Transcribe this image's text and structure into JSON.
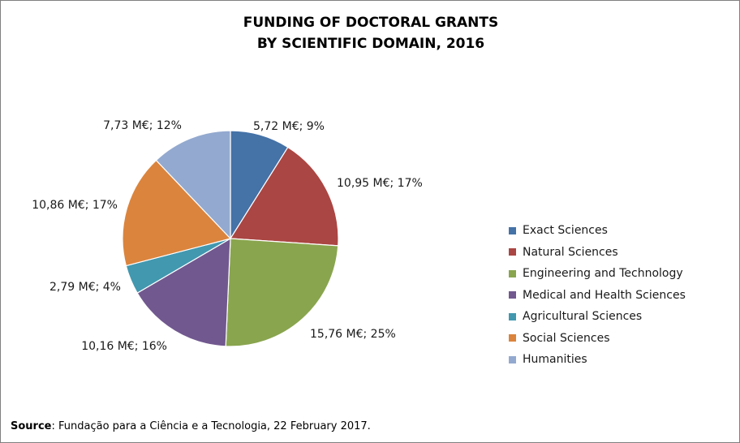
{
  "title_line1": "FUNDING OF DOCTORAL GRANTS",
  "title_line2": "BY SCIENTIFIC DOMAIN, 2016",
  "source_label": "Source",
  "source_text": ": Fundação para a Ciência e a Tecnologia, 22 February 2017.",
  "chart_data": {
    "type": "pie",
    "title": "FUNDING OF DOCTORAL GRANTS BY SCIENTIFIC DOMAIN, 2016",
    "unit": "M€",
    "legend_position": "right",
    "slices": [
      {
        "name": "Exact Sciences",
        "value": 5.72,
        "percent": 9,
        "label": "5,72 M€; 9%",
        "color": "#4572a7"
      },
      {
        "name": "Natural Sciences",
        "value": 10.95,
        "percent": 17,
        "label": "10,95 M€; 17%",
        "color": "#aa4643"
      },
      {
        "name": "Engineering and Technology",
        "value": 15.76,
        "percent": 25,
        "label": "15,76 M€; 25%",
        "color": "#89a54e"
      },
      {
        "name": "Medical and Health Sciences",
        "value": 10.16,
        "percent": 16,
        "label": "10,16 M€; 16%",
        "color": "#71588f"
      },
      {
        "name": "Agricultural Sciences",
        "value": 2.79,
        "percent": 4,
        "label": "2,79 M€; 4%",
        "color": "#4198af"
      },
      {
        "name": "Social Sciences",
        "value": 10.86,
        "percent": 17,
        "label": "10,86 M€; 17%",
        "color": "#db843d"
      },
      {
        "name": "Humanities",
        "value": 7.73,
        "percent": 12,
        "label": "7,73 M€; 12%",
        "color": "#93a9cf"
      }
    ]
  }
}
